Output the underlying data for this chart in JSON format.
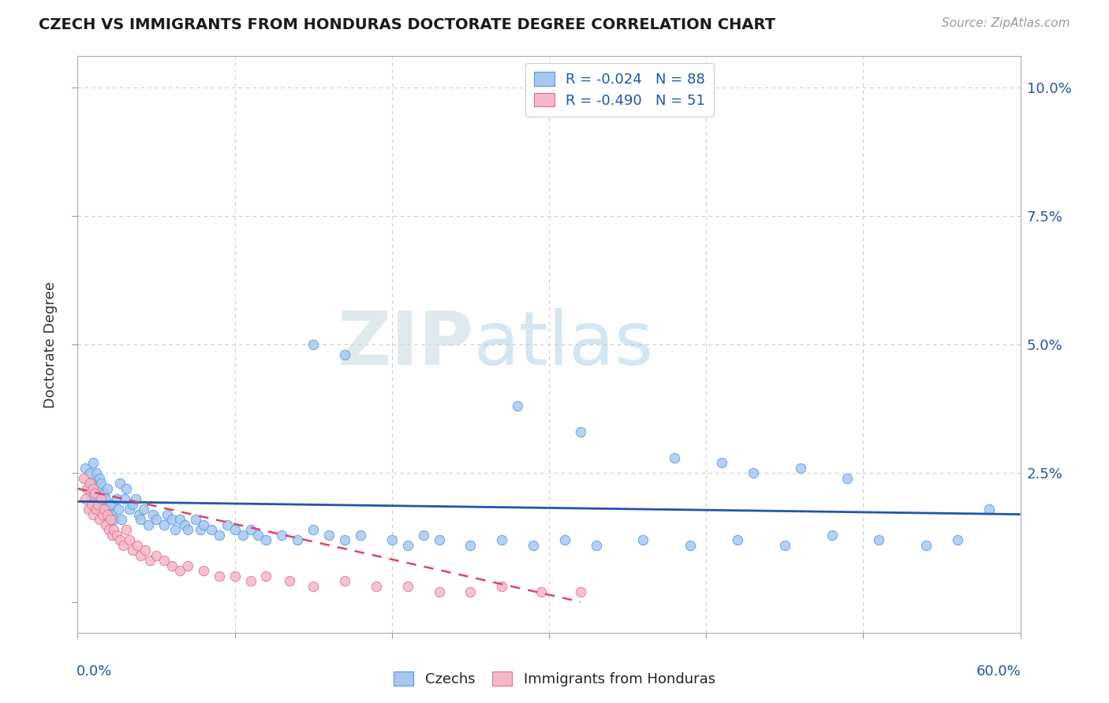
{
  "title": "CZECH VS IMMIGRANTS FROM HONDURAS DOCTORATE DEGREE CORRELATION CHART",
  "source": "Source: ZipAtlas.com",
  "ylabel": "Doctorate Degree",
  "xlim": [
    0.0,
    0.6
  ],
  "ylim": [
    -0.006,
    0.106
  ],
  "czech_color": "#a8c8f0",
  "czech_edge": "#5599dd",
  "honduras_color": "#f5b8c8",
  "honduras_edge": "#dd7090",
  "trendline_czech_color": "#2255aa",
  "trendline_honduras_color": "#dd4466",
  "watermark_color": "#cce4f0",
  "background_color": "#ffffff",
  "grid_color": "#cccccc",
  "legend_color": "#2255aa",
  "ytick_labels": [
    "",
    "2.5%",
    "5.0%",
    "7.5%",
    "10.0%"
  ],
  "ytick_vals": [
    0.0,
    0.025,
    0.05,
    0.075,
    0.1
  ],
  "xtick_vals": [
    0.0,
    0.1,
    0.2,
    0.3,
    0.4,
    0.5,
    0.6
  ],
  "czech_x": [
    0.005,
    0.007,
    0.008,
    0.009,
    0.01,
    0.01,
    0.011,
    0.012,
    0.012,
    0.013,
    0.013,
    0.014,
    0.015,
    0.015,
    0.016,
    0.017,
    0.018,
    0.019,
    0.02,
    0.021,
    0.022,
    0.023,
    0.025,
    0.026,
    0.027,
    0.028,
    0.03,
    0.031,
    0.033,
    0.035,
    0.037,
    0.039,
    0.04,
    0.042,
    0.045,
    0.048,
    0.05,
    0.055,
    0.057,
    0.06,
    0.062,
    0.065,
    0.068,
    0.07,
    0.075,
    0.078,
    0.08,
    0.085,
    0.09,
    0.095,
    0.1,
    0.105,
    0.11,
    0.115,
    0.12,
    0.13,
    0.14,
    0.15,
    0.16,
    0.17,
    0.18,
    0.2,
    0.21,
    0.22,
    0.23,
    0.25,
    0.27,
    0.29,
    0.31,
    0.33,
    0.36,
    0.39,
    0.42,
    0.45,
    0.48,
    0.51,
    0.54,
    0.56,
    0.15,
    0.17,
    0.28,
    0.32,
    0.38,
    0.41,
    0.43,
    0.46,
    0.49,
    0.58
  ],
  "czech_y": [
    0.026,
    0.022,
    0.025,
    0.02,
    0.027,
    0.023,
    0.018,
    0.025,
    0.021,
    0.022,
    0.018,
    0.024,
    0.023,
    0.02,
    0.019,
    0.021,
    0.02,
    0.022,
    0.018,
    0.019,
    0.017,
    0.016,
    0.02,
    0.018,
    0.023,
    0.016,
    0.02,
    0.022,
    0.018,
    0.019,
    0.02,
    0.017,
    0.016,
    0.018,
    0.015,
    0.017,
    0.016,
    0.015,
    0.017,
    0.016,
    0.014,
    0.016,
    0.015,
    0.014,
    0.016,
    0.014,
    0.015,
    0.014,
    0.013,
    0.015,
    0.014,
    0.013,
    0.014,
    0.013,
    0.012,
    0.013,
    0.012,
    0.014,
    0.013,
    0.012,
    0.013,
    0.012,
    0.011,
    0.013,
    0.012,
    0.011,
    0.012,
    0.011,
    0.012,
    0.011,
    0.012,
    0.011,
    0.012,
    0.011,
    0.013,
    0.012,
    0.011,
    0.012,
    0.05,
    0.048,
    0.038,
    0.033,
    0.028,
    0.027,
    0.025,
    0.026,
    0.024,
    0.018
  ],
  "honduras_x": [
    0.004,
    0.005,
    0.006,
    0.007,
    0.008,
    0.009,
    0.01,
    0.01,
    0.011,
    0.012,
    0.013,
    0.014,
    0.015,
    0.016,
    0.017,
    0.018,
    0.019,
    0.02,
    0.021,
    0.022,
    0.023,
    0.025,
    0.027,
    0.029,
    0.031,
    0.033,
    0.035,
    0.038,
    0.04,
    0.043,
    0.046,
    0.05,
    0.055,
    0.06,
    0.065,
    0.07,
    0.08,
    0.09,
    0.1,
    0.11,
    0.12,
    0.135,
    0.15,
    0.17,
    0.19,
    0.21,
    0.23,
    0.25,
    0.27,
    0.295,
    0.32
  ],
  "honduras_y": [
    0.024,
    0.02,
    0.022,
    0.018,
    0.023,
    0.019,
    0.022,
    0.017,
    0.021,
    0.018,
    0.019,
    0.016,
    0.02,
    0.017,
    0.018,
    0.015,
    0.017,
    0.014,
    0.016,
    0.013,
    0.014,
    0.013,
    0.012,
    0.011,
    0.014,
    0.012,
    0.01,
    0.011,
    0.009,
    0.01,
    0.008,
    0.009,
    0.008,
    0.007,
    0.006,
    0.007,
    0.006,
    0.005,
    0.005,
    0.004,
    0.005,
    0.004,
    0.003,
    0.004,
    0.003,
    0.003,
    0.002,
    0.002,
    0.003,
    0.002,
    0.002
  ],
  "czech_trend_x": [
    0.0,
    0.6
  ],
  "czech_trend_y": [
    0.0195,
    0.017
  ],
  "honduras_trend_x": [
    0.0,
    0.32
  ],
  "honduras_trend_y": [
    0.022,
    0.0
  ],
  "marker_size": 80
}
